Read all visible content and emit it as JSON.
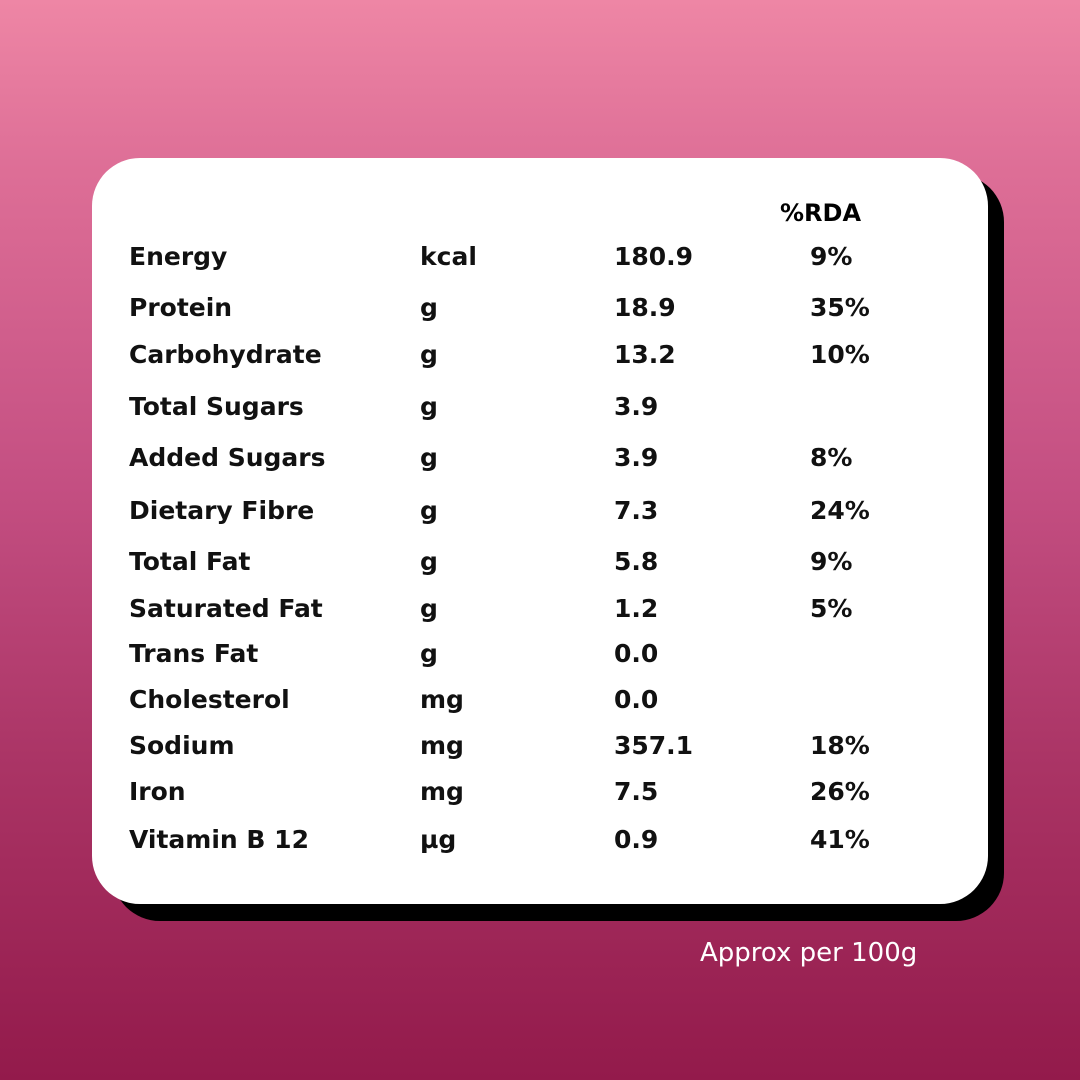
{
  "table": {
    "rda_header": "%RDA",
    "rows": [
      {
        "name": "Energy",
        "unit": "kcal",
        "amount": "180.9",
        "rda": "9%"
      },
      {
        "name": "Protein",
        "unit": "g",
        "amount": "18.9",
        "rda": "35%"
      },
      {
        "name": "Carbohydrate",
        "unit": "g",
        "amount": "13.2",
        "rda": "10%"
      },
      {
        "name": "Total Sugars",
        "unit": "g",
        "amount": "3.9",
        "rda": ""
      },
      {
        "name": "Added Sugars",
        "unit": "g",
        "amount": "3.9",
        "rda": "8%"
      },
      {
        "name": "Dietary Fibre",
        "unit": "g",
        "amount": "7.3",
        "rda": "24%"
      },
      {
        "name": "Total Fat",
        "unit": "g",
        "amount": "5.8",
        "rda": "9%"
      },
      {
        "name": "Saturated Fat",
        "unit": "g",
        "amount": "1.2",
        "rda": "5%"
      },
      {
        "name": "Trans Fat",
        "unit": "g",
        "amount": "0.0",
        "rda": ""
      },
      {
        "name": "Cholesterol",
        "unit": "mg",
        "amount": "0.0",
        "rda": ""
      },
      {
        "name": "Sodium",
        "unit": "mg",
        "amount": "357.1",
        "rda": "18%"
      },
      {
        "name": "Iron",
        "unit": "mg",
        "amount": "7.5",
        "rda": "26%"
      },
      {
        "name": "Vitamin B 12",
        "unit": "µg",
        "amount": "0.9",
        "rda": "41%"
      }
    ]
  },
  "footnote": "Approx per 100g"
}
